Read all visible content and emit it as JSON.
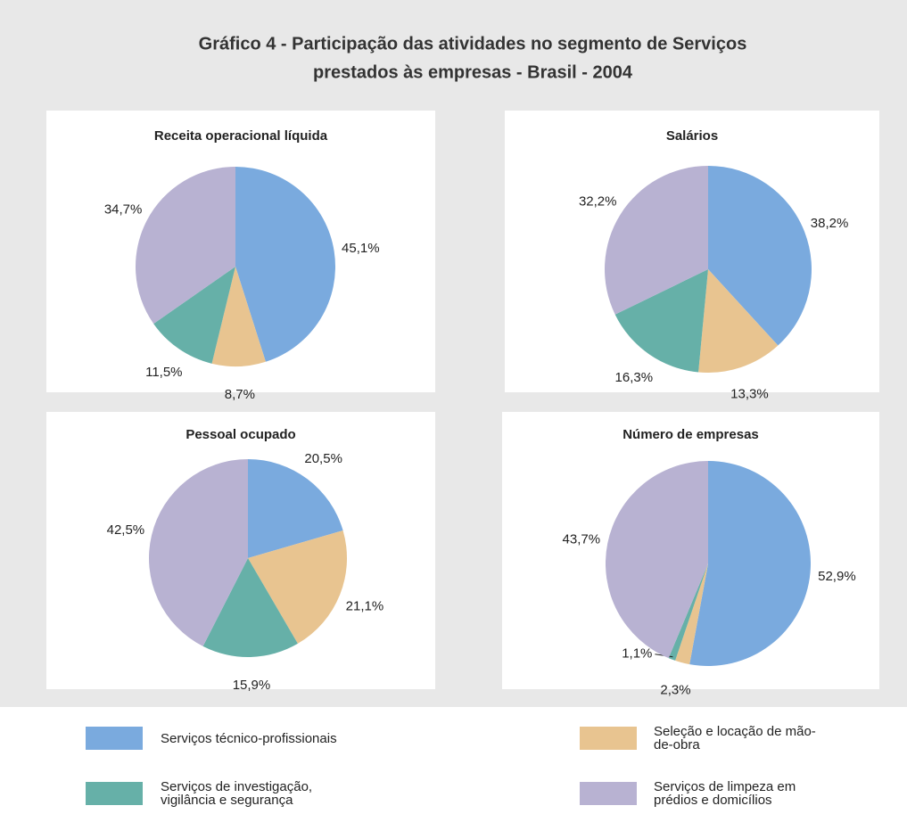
{
  "title": [
    "Gráfico 4 - Participação das atividades no segmento de Serviços",
    "prestados às empresas  - Brasil - 2004"
  ],
  "chart_data": [
    {
      "type": "pie",
      "title": "Receita operacional líquida",
      "categories": [
        "Serviços técnico-profissionais",
        "Seleção e locação de mão-de-obra",
        "Serviços de investigação, vigilância e segurança",
        "Serviços de limpeza em prédios e domicílios"
      ],
      "colors": [
        "#7aaade",
        "#e8c490",
        "#66b0a8",
        "#b8b2d2"
      ],
      "values": [
        45.1,
        8.7,
        11.5,
        34.7
      ],
      "value_labels": [
        "45,1%",
        "8,7%",
        "11,5%",
        "34,7%"
      ]
    },
    {
      "type": "pie",
      "title": "Salários",
      "categories": [
        "Serviços técnico-profissionais",
        "Seleção e locação de mão-de-obra",
        "Serviços de investigação, vigilância e segurança",
        "Serviços de limpeza em prédios e domicílios"
      ],
      "colors": [
        "#7aaade",
        "#e8c490",
        "#66b0a8",
        "#b8b2d2"
      ],
      "values": [
        38.2,
        13.3,
        16.3,
        32.2
      ],
      "value_labels": [
        "38,2%",
        "13,3%",
        "16,3%",
        "32,2%"
      ]
    },
    {
      "type": "pie",
      "title": "Pessoal ocupado",
      "categories": [
        "Serviços técnico-profissionais",
        "Seleção e locação de mão-de-obra",
        "Serviços de investigação, vigilância e segurança",
        "Serviços de limpeza em prédios e domicílios"
      ],
      "colors": [
        "#7aaade",
        "#e8c490",
        "#66b0a8",
        "#b8b2d2"
      ],
      "values": [
        20.5,
        21.1,
        15.9,
        42.5
      ],
      "value_labels": [
        "20,5%",
        "21,1%",
        "15,9%",
        "42,5%"
      ]
    },
    {
      "type": "pie",
      "title": "Número de empresas",
      "categories": [
        "Serviços técnico-profissionais",
        "Seleção e locação de mão-de-obra",
        "Serviços de investigação, vigilância e segurança",
        "Serviços de limpeza em prédios e domicílios"
      ],
      "colors": [
        "#7aaade",
        "#e8c490",
        "#66b0a8",
        "#b8b2d2"
      ],
      "values": [
        52.9,
        2.3,
        1.1,
        43.7
      ],
      "value_labels": [
        "52,9%",
        "2,3%",
        "1,1%",
        "43,7%"
      ]
    }
  ]
}
